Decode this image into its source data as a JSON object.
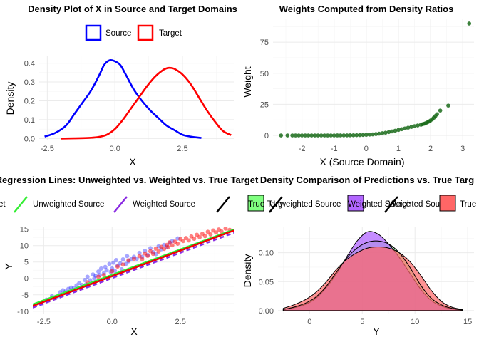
{
  "colors": {
    "source": "#0000ff",
    "target": "#ff0000",
    "weights": "#1a6b1a",
    "unweighted": "#33ee33",
    "weighted": "#8a2be2",
    "true_line": "#000000",
    "fill_true_target": "#80ff80",
    "fill_unweighted": "#b266ff",
    "fill_weighted": "#ff6666"
  },
  "chart_data": [
    {
      "type": "line",
      "title": "Density Plot of X in Source and Target Domains",
      "xlabel": "X",
      "ylabel": "Density",
      "xlim": [
        -2.8,
        4.4
      ],
      "ylim": [
        -0.01,
        0.44
      ],
      "xticks": [
        -2.5,
        0.0,
        2.5
      ],
      "xtick_labels": [
        "-2.5",
        "0.0",
        "2.5"
      ],
      "yticks": [
        0.0,
        0.1,
        0.2,
        0.3,
        0.4
      ],
      "ytick_labels": [
        "0.0",
        "0.1",
        "0.2",
        "0.3",
        "0.4"
      ],
      "grid": true,
      "legend_position": "top",
      "series": [
        {
          "name": "Source",
          "x": [
            -2.6,
            -2.2,
            -1.8,
            -1.5,
            -1.2,
            -0.9,
            -0.6,
            -0.4,
            -0.2,
            0.0,
            0.2,
            0.4,
            0.7,
            1.0,
            1.3,
            1.6,
            1.9,
            2.2,
            2.5,
            2.8,
            3.2
          ],
          "y": [
            0.01,
            0.03,
            0.07,
            0.13,
            0.19,
            0.25,
            0.33,
            0.39,
            0.415,
            0.41,
            0.39,
            0.34,
            0.26,
            0.2,
            0.15,
            0.11,
            0.07,
            0.045,
            0.02,
            0.01,
            0.003
          ]
        },
        {
          "name": "Target",
          "x": [
            -2.0,
            -1.5,
            -1.0,
            -0.6,
            -0.3,
            0.0,
            0.3,
            0.6,
            0.9,
            1.2,
            1.5,
            1.8,
            2.0,
            2.2,
            2.5,
            2.8,
            3.1,
            3.4,
            3.7,
            4.0,
            4.3
          ],
          "y": [
            0.0,
            0.001,
            0.003,
            0.008,
            0.02,
            0.05,
            0.1,
            0.16,
            0.22,
            0.28,
            0.33,
            0.365,
            0.375,
            0.37,
            0.34,
            0.29,
            0.22,
            0.15,
            0.09,
            0.04,
            0.018
          ]
        }
      ]
    },
    {
      "type": "scatter",
      "title": "Weights Computed from Density Ratios",
      "xlabel": "X (Source Domain)",
      "ylabel": "Weight",
      "xlim": [
        -2.9,
        3.35
      ],
      "ylim": [
        -4,
        94
      ],
      "xticks": [
        -2,
        -1,
        0,
        1,
        2,
        3
      ],
      "xtick_labels": [
        "-2",
        "-1",
        "0",
        "1",
        "2",
        "3"
      ],
      "yticks": [
        0,
        25,
        50,
        75
      ],
      "ytick_labels": [
        "0",
        "25",
        "50",
        "75"
      ],
      "grid": true,
      "series": [
        {
          "name": "",
          "x": [
            -2.65,
            -2.45,
            -2.3,
            -2.2,
            -2.1,
            -2.0,
            -1.9,
            -1.8,
            -1.7,
            -1.6,
            -1.5,
            -1.4,
            -1.3,
            -1.2,
            -1.1,
            -1.0,
            -0.9,
            -0.8,
            -0.7,
            -0.6,
            -0.5,
            -0.4,
            -0.3,
            -0.2,
            -0.1,
            0.0,
            0.1,
            0.2,
            0.3,
            0.4,
            0.5,
            0.6,
            0.7,
            0.8,
            0.9,
            1.0,
            1.1,
            1.2,
            1.3,
            1.4,
            1.5,
            1.6,
            1.7,
            1.75,
            1.8,
            1.85,
            1.9,
            1.95,
            2.0,
            2.05,
            2.1,
            2.15,
            2.2,
            2.3,
            2.55,
            3.2
          ],
          "y": [
            0.0,
            0.0,
            0.0,
            0.0,
            0.0,
            0.0,
            0.0,
            0.0,
            0.0,
            0.0,
            0.0,
            0.0,
            0.0,
            0.0,
            0.01,
            0.01,
            0.02,
            0.03,
            0.05,
            0.07,
            0.1,
            0.14,
            0.2,
            0.28,
            0.38,
            0.5,
            0.65,
            0.85,
            1.1,
            1.4,
            1.8,
            2.2,
            2.7,
            3.2,
            3.8,
            4.4,
            5.0,
            5.6,
            6.2,
            6.8,
            7.4,
            8.0,
            8.6,
            9.0,
            9.4,
            9.9,
            10.5,
            11.2,
            12.0,
            13.0,
            14.2,
            15.6,
            17.0,
            20.0,
            24.0,
            90.0
          ]
        }
      ]
    },
    {
      "type": "scatter",
      "title": "Regression Lines: Unweighted vs. Weighted vs. True Target",
      "xlabel": "X",
      "ylabel": "Y",
      "xlim": [
        -2.9,
        4.45
      ],
      "ylim": [
        -10.7,
        15.8
      ],
      "xticks": [
        -2.5,
        0.0,
        2.5
      ],
      "xtick_labels": [
        "-2.5",
        "0.0",
        "2.5"
      ],
      "yticks": [
        -10,
        -5,
        0,
        5,
        10,
        15
      ],
      "ytick_labels": [
        "-10",
        "-5",
        "0",
        "5",
        "10",
        "15"
      ],
      "grid": true,
      "legend_position": "top",
      "legend_entries": [
        "et",
        "Unweighted Source",
        "Weighted Source"
      ],
      "points_source": {
        "name": "",
        "x": [
          -2.6,
          -2.4,
          -2.2,
          -2.0,
          -1.9,
          -1.8,
          -1.7,
          -1.6,
          -1.5,
          -1.4,
          -1.3,
          -1.2,
          -1.1,
          -1.0,
          -0.95,
          -0.9,
          -0.8,
          -0.7,
          -0.65,
          -0.6,
          -0.5,
          -0.45,
          -0.4,
          -0.3,
          -0.25,
          -0.2,
          -0.1,
          -0.05,
          0.0,
          0.05,
          0.1,
          0.15,
          0.2,
          0.3,
          0.35,
          0.4,
          0.5,
          0.55,
          0.6,
          0.7,
          0.8,
          0.9,
          1.0,
          1.1,
          1.2,
          1.3,
          1.4,
          1.5,
          1.6,
          1.7,
          1.8,
          1.9,
          2.0,
          2.1,
          2.2,
          2.4
        ],
        "y": [
          -7.8,
          -6.5,
          -5.4,
          -5.5,
          -4.2,
          -3.6,
          -4.0,
          -3.2,
          -2.8,
          -3.0,
          -2.1,
          -1.4,
          -2.0,
          -0.5,
          -1.8,
          0.5,
          -0.6,
          1.2,
          0.0,
          0.8,
          2.1,
          1.0,
          3.0,
          1.6,
          3.5,
          2.5,
          4.4,
          2.0,
          3.0,
          4.8,
          2.3,
          5.6,
          3.9,
          4.6,
          2.8,
          5.8,
          4.4,
          6.8,
          5.2,
          5.9,
          6.6,
          6.0,
          7.8,
          6.6,
          8.4,
          7.2,
          9.2,
          8.0,
          7.4,
          9.8,
          8.9,
          10.2,
          9.6,
          10.8,
          11.4,
          12.2
        ]
      },
      "points_target": {
        "name": "",
        "x": [
          -0.9,
          -0.5,
          -0.3,
          0.0,
          0.2,
          0.4,
          0.6,
          0.8,
          1.0,
          1.1,
          1.2,
          1.3,
          1.4,
          1.5,
          1.6,
          1.7,
          1.8,
          1.9,
          2.0,
          2.05,
          2.1,
          2.2,
          2.3,
          2.4,
          2.5,
          2.6,
          2.7,
          2.8,
          2.9,
          3.0,
          3.1,
          3.2,
          3.3,
          3.4,
          3.5,
          3.6,
          3.7,
          3.8,
          3.9,
          4.0,
          4.15,
          4.3
        ],
        "y": [
          -1.2,
          0.5,
          1.0,
          2.2,
          3.6,
          4.2,
          5.5,
          6.0,
          6.8,
          5.9,
          7.6,
          6.9,
          8.3,
          7.5,
          9.1,
          8.2,
          9.6,
          9.0,
          10.2,
          9.5,
          11.0,
          10.1,
          11.2,
          10.6,
          12.0,
          11.4,
          12.3,
          11.6,
          12.8,
          12.1,
          13.3,
          12.6,
          13.6,
          12.9,
          14.2,
          13.4,
          14.6,
          14.0,
          14.9,
          14.3,
          15.2,
          14.8
        ]
      },
      "lines": [
        {
          "name": "Unweighted Source",
          "x": [
            -2.9,
            4.45
          ],
          "y": [
            -7.9,
            14.9
          ]
        },
        {
          "name": "Weighted Source",
          "x": [
            -2.9,
            4.45
          ],
          "y": [
            -8.9,
            13.9
          ]
        },
        {
          "name": "",
          "x": [
            -2.9,
            4.45
          ],
          "y": [
            -8.4,
            14.6
          ]
        }
      ]
    },
    {
      "type": "area",
      "title": "Density Comparison of Predictions vs. True Targ",
      "xlabel": "Y",
      "ylabel": "Density",
      "xlim": [
        -3.0,
        15.6
      ],
      "ylim": [
        -0.005,
        0.145
      ],
      "xticks": [
        0,
        5,
        10,
        15
      ],
      "xtick_labels": [
        "0",
        "5",
        "10",
        "15"
      ],
      "yticks": [
        0.0,
        0.05,
        0.1
      ],
      "ytick_labels": [
        "0.00",
        "0.05",
        "0.10"
      ],
      "grid": true,
      "legend_position": "top",
      "legend_entries": [
        "True Target",
        "Unweighted Source",
        "Weighted Source"
      ],
      "legend_overlap_text": [
        "True Targ",
        "Unweighted Source",
        "Weighted Source",
        "True"
      ],
      "series": [
        {
          "name": "True Target",
          "x": [
            -2.5,
            -1.5,
            -0.5,
            0.5,
            1.5,
            2.5,
            3.5,
            4.5,
            5.5,
            6.5,
            7.5,
            8.5,
            9.5,
            10.5,
            11.5,
            12.5,
            13.5,
            14.5
          ],
          "y": [
            0.002,
            0.006,
            0.012,
            0.022,
            0.04,
            0.065,
            0.09,
            0.108,
            0.118,
            0.12,
            0.115,
            0.1,
            0.075,
            0.045,
            0.022,
            0.01,
            0.004,
            0.001
          ]
        },
        {
          "name": "Unweighted Source",
          "x": [
            -2.5,
            -1.5,
            -0.5,
            0.5,
            1.5,
            2.5,
            3.5,
            4.5,
            5.5,
            6.5,
            7.5,
            8.5,
            9.5,
            10.5,
            11.5,
            12.5,
            13.5,
            14.5
          ],
          "y": [
            0.002,
            0.005,
            0.01,
            0.02,
            0.038,
            0.062,
            0.092,
            0.12,
            0.136,
            0.132,
            0.115,
            0.092,
            0.065,
            0.038,
            0.018,
            0.008,
            0.003,
            0.001
          ]
        },
        {
          "name": "Weighted Source",
          "x": [
            -2.5,
            -1.5,
            -0.5,
            0.5,
            1.5,
            2.5,
            3.5,
            4.5,
            5.5,
            6.5,
            7.5,
            8.5,
            9.5,
            10.5,
            11.5,
            12.5,
            13.5,
            14.5
          ],
          "y": [
            0.004,
            0.01,
            0.018,
            0.03,
            0.048,
            0.07,
            0.088,
            0.1,
            0.108,
            0.11,
            0.108,
            0.1,
            0.085,
            0.062,
            0.036,
            0.016,
            0.006,
            0.002
          ]
        }
      ]
    }
  ]
}
